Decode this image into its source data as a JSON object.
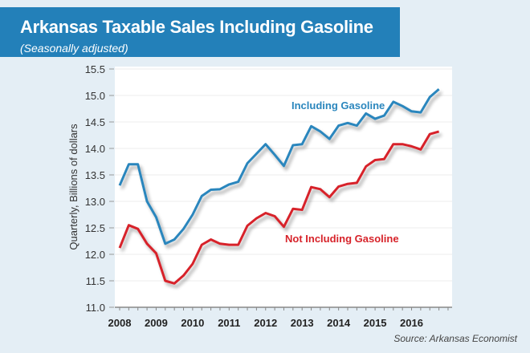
{
  "header": {
    "title": "Arkansas Taxable Sales Including Gasoline",
    "subtitle": "(Seasonally adjusted)"
  },
  "source": "Source: Arkansas Economist",
  "colors": {
    "including": "#2a86bd",
    "not_including": "#d7232a",
    "banner": "#2380b9"
  },
  "chart_data": {
    "type": "line",
    "title": "Arkansas Taxable Sales Including Gasoline",
    "subtitle": "(Seasonally adjusted)",
    "xlabel": "",
    "ylabel": "Quarterly, Billions of dollars",
    "ylim": [
      11.0,
      15.5
    ],
    "yticks": [
      "11.0",
      "11.5",
      "12.0",
      "12.5",
      "13.0",
      "13.5",
      "14.0",
      "14.5",
      "15.0",
      "15.5"
    ],
    "xticks": [
      "2008",
      "2009",
      "2010",
      "2011",
      "2012",
      "2013",
      "2014",
      "2015",
      "2016"
    ],
    "x_start": 2008.0,
    "x_step": 0.25,
    "grid": true,
    "series": [
      {
        "name": "Including Gasoline",
        "label": "Including Gasoline",
        "values": [
          13.3,
          13.7,
          13.7,
          13.0,
          12.7,
          12.2,
          12.28,
          12.48,
          12.75,
          13.1,
          13.22,
          13.23,
          13.32,
          13.37,
          13.72,
          13.9,
          14.08,
          13.88,
          13.67,
          14.06,
          14.08,
          14.42,
          14.32,
          14.18,
          14.43,
          14.48,
          14.43,
          14.66,
          14.56,
          14.62,
          14.88,
          14.8,
          14.7,
          14.68,
          14.97,
          15.12
        ]
      },
      {
        "name": "Not Including Gasoline",
        "label": "Not Including Gasoline",
        "values": [
          12.12,
          12.55,
          12.48,
          12.2,
          12.02,
          11.5,
          11.45,
          11.6,
          11.82,
          12.18,
          12.28,
          12.2,
          12.18,
          12.18,
          12.54,
          12.68,
          12.78,
          12.72,
          12.52,
          12.86,
          12.84,
          13.27,
          13.23,
          13.08,
          13.28,
          13.33,
          13.35,
          13.66,
          13.78,
          13.8,
          14.08,
          14.08,
          14.04,
          13.98,
          14.27,
          14.32
        ]
      }
    ]
  }
}
